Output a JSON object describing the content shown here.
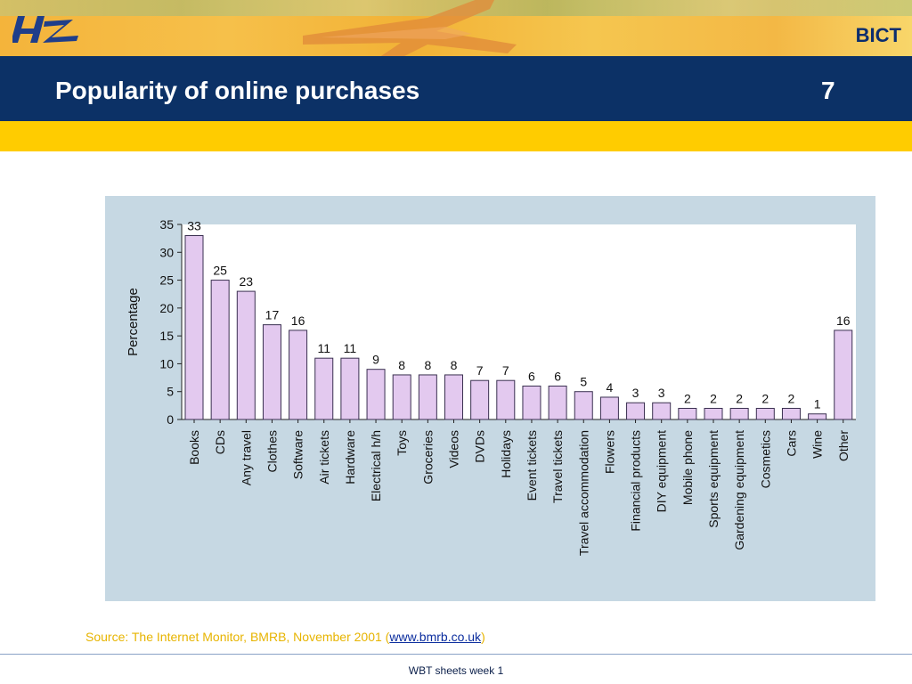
{
  "header": {
    "brand": "BICT",
    "logo_text": "HZ",
    "title": "Popularity of online purchases",
    "page_number": "7"
  },
  "chart_data": {
    "type": "bar",
    "ylabel": "Percentage",
    "xlabel": "",
    "ylim": [
      0,
      35
    ],
    "yticks": [
      0,
      5,
      10,
      15,
      20,
      25,
      30,
      35
    ],
    "categories": [
      "Books",
      "CDs",
      "Any travel",
      "Clothes",
      "Software",
      "Air tickets",
      "Hardware",
      "Electrical h/h",
      "Toys",
      "Groceries",
      "Videos",
      "DVDs",
      "Holidays",
      "Event tickets",
      "Travel tickets",
      "Travel accommodation",
      "Flowers",
      "Financial products",
      "DIY equipment",
      "Mobile phone",
      "Sports equipment",
      "Gardening equipment",
      "Cosmetics",
      "Cars",
      "Wine",
      "Other"
    ],
    "values": [
      33,
      25,
      23,
      17,
      16,
      11,
      11,
      9,
      8,
      8,
      8,
      7,
      7,
      6,
      6,
      5,
      4,
      3,
      3,
      2,
      2,
      2,
      2,
      2,
      1,
      16
    ],
    "bar_color": "#e3c9ef",
    "bar_stroke": "#3a3050",
    "grid": false
  },
  "source": {
    "prefix": "Source: The Internet Monitor, BMRB, November 2001 (",
    "link_text": "www.bmrb.co.uk",
    "suffix": ")"
  },
  "footer": {
    "text": "WBT sheets week 1"
  }
}
